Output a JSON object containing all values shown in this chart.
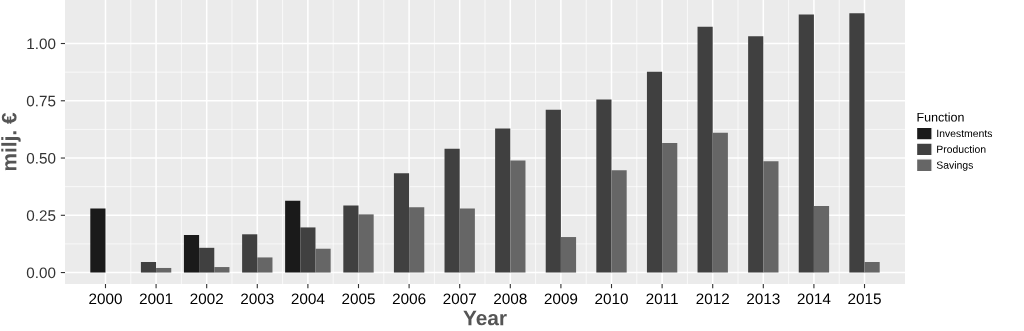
{
  "chart_data": {
    "type": "bar",
    "xlabel": "Year",
    "ylabel": "milj. €",
    "legend_title": "Function",
    "categories": [
      "2000",
      "2001",
      "2002",
      "2003",
      "2004",
      "2005",
      "2006",
      "2007",
      "2008",
      "2009",
      "2010",
      "2011",
      "2012",
      "2013",
      "2014",
      "2015"
    ],
    "series": [
      {
        "name": "Investments",
        "color": "#1a1a1a",
        "values": [
          0.28,
          null,
          0.164,
          null,
          0.313,
          null,
          null,
          null,
          null,
          null,
          null,
          null,
          null,
          null,
          null,
          null
        ]
      },
      {
        "name": "Production",
        "color": "#404040",
        "values": [
          0,
          0.046,
          0.108,
          0.167,
          0.197,
          0.293,
          0.434,
          0.54,
          0.629,
          0.711,
          0.756,
          0.877,
          1.073,
          1.032,
          1.127,
          1.132
        ]
      },
      {
        "name": "Savings",
        "color": "#666666",
        "values": [
          null,
          0.02,
          0.024,
          0.066,
          0.104,
          0.254,
          0.285,
          0.28,
          0.489,
          0.155,
          0.447,
          0.566,
          0.61,
          0.486,
          0.291,
          0.046
        ]
      }
    ],
    "ylim": [
      -0.05,
      1.19
    ],
    "yticks": [
      {
        "value": 0,
        "label": "0.00"
      },
      {
        "value": 0.25,
        "label": "0.25"
      },
      {
        "value": 0.5,
        "label": "0.50"
      },
      {
        "value": 0.75,
        "label": "0.75"
      },
      {
        "value": 1,
        "label": "1.00"
      }
    ],
    "grid": true,
    "legend": "right"
  }
}
